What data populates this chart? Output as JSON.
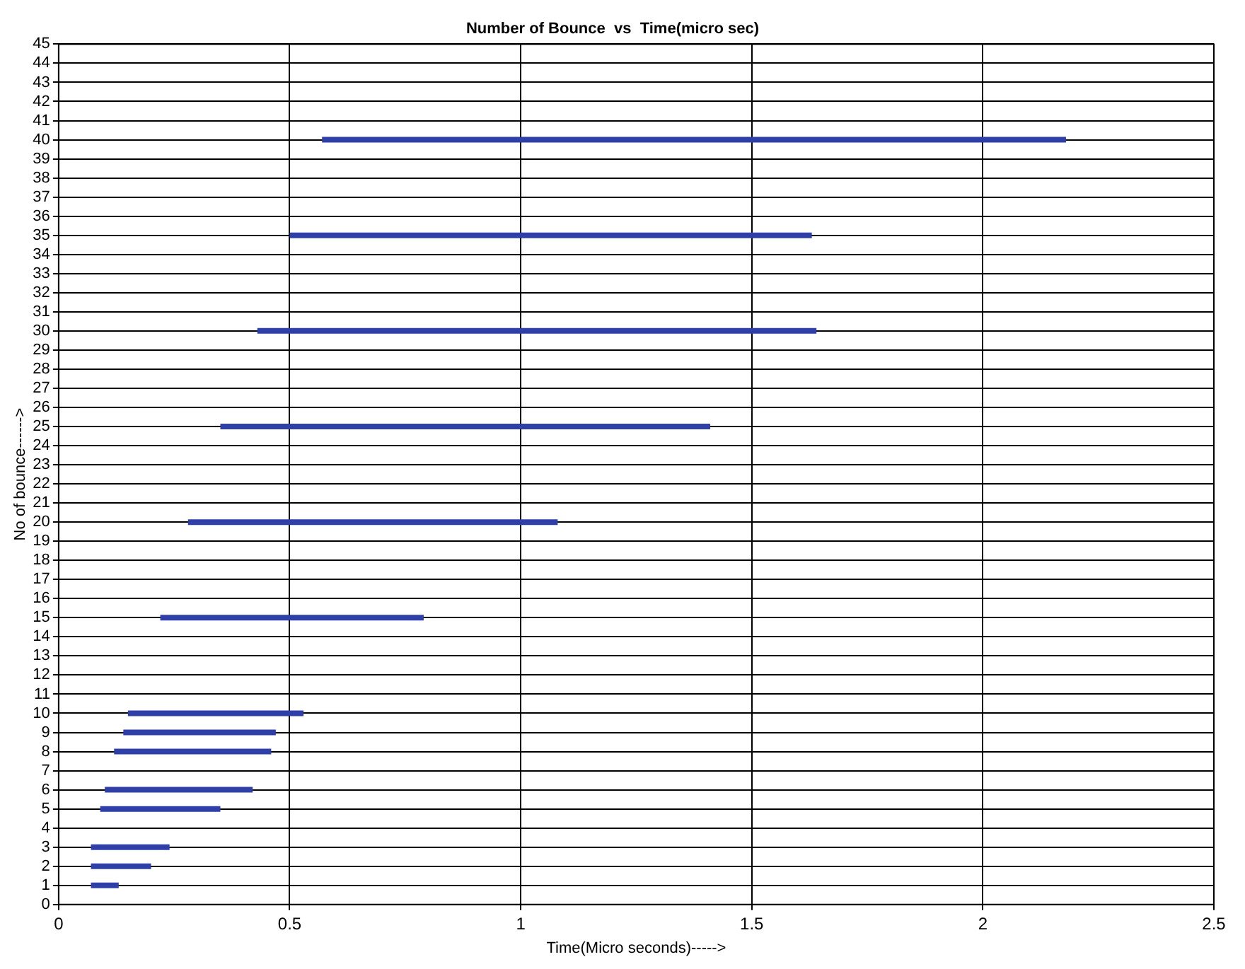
{
  "chart_data": {
    "type": "line",
    "title": "Number of Bounce  vs  Time(micro sec)",
    "xlabel": "Time(Micro seconds)----->",
    "ylabel": "No of bounce------>",
    "xlim": [
      0,
      2.5
    ],
    "xticks": [
      0,
      0.5,
      1,
      1.5,
      2,
      2.5
    ],
    "ylim": [
      0,
      45
    ],
    "yticks": [
      0,
      1,
      2,
      3,
      4,
      5,
      6,
      7,
      8,
      9,
      10,
      11,
      12,
      13,
      14,
      15,
      16,
      17,
      18,
      19,
      20,
      21,
      22,
      23,
      24,
      25,
      26,
      27,
      28,
      29,
      30,
      31,
      32,
      33,
      34,
      35,
      36,
      37,
      38,
      39,
      40,
      41,
      42,
      43,
      44,
      45
    ],
    "grid": true,
    "marker": "none",
    "line_style": "solid",
    "series": [
      {
        "color": "#2e3fa8",
        "x": [
          0.07,
          0.13
        ],
        "values": [
          1,
          1
        ]
      },
      {
        "color": "#2e3fa8",
        "x": [
          0.07,
          0.2
        ],
        "values": [
          2,
          2
        ]
      },
      {
        "color": "#2e3fa8",
        "x": [
          0.07,
          0.24
        ],
        "values": [
          3,
          3
        ]
      },
      {
        "color": "#2e3fa8",
        "x": [
          0.09,
          0.35
        ],
        "values": [
          5,
          5
        ]
      },
      {
        "color": "#2e3fa8",
        "x": [
          0.1,
          0.42
        ],
        "values": [
          6,
          6
        ]
      },
      {
        "color": "#2e3fa8",
        "x": [
          0.12,
          0.46
        ],
        "values": [
          8,
          8
        ]
      },
      {
        "color": "#2e3fa8",
        "x": [
          0.14,
          0.47
        ],
        "values": [
          9,
          9
        ]
      },
      {
        "color": "#2e3fa8",
        "x": [
          0.15,
          0.53
        ],
        "values": [
          10,
          10
        ]
      },
      {
        "color": "#2e3fa8",
        "x": [
          0.22,
          0.79
        ],
        "values": [
          15,
          15
        ]
      },
      {
        "color": "#2e3fa8",
        "x": [
          0.28,
          1.08
        ],
        "values": [
          20,
          20
        ]
      },
      {
        "color": "#2e3fa8",
        "x": [
          0.35,
          1.41
        ],
        "values": [
          25,
          25
        ]
      },
      {
        "color": "#2e3fa8",
        "x": [
          0.43,
          1.64
        ],
        "values": [
          30,
          30
        ]
      },
      {
        "color": "#2e3fa8",
        "x": [
          0.5,
          1.63
        ],
        "values": [
          35,
          35
        ]
      },
      {
        "color": "#2e3fa8",
        "x": [
          0.57,
          2.18
        ],
        "values": [
          40,
          40
        ]
      }
    ]
  }
}
